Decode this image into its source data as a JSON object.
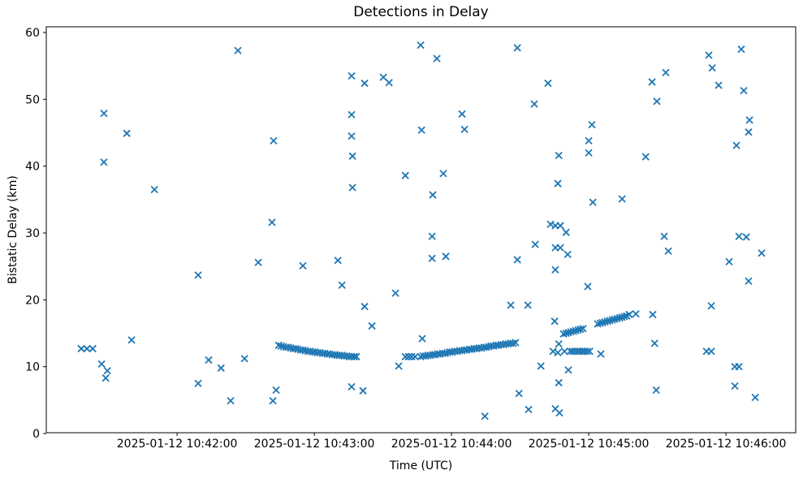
{
  "figure": {
    "title": "Detections in Delay",
    "xlabel": "Time (UTC)",
    "ylabel": "Bistatic Delay (km)"
  },
  "chart_data": {
    "type": "scatter",
    "title": "Detections in Delay",
    "xlabel": "Time (UTC)",
    "ylabel": "Bistatic Delay (km)",
    "marker": "x",
    "marker_color": "#1f77b4",
    "grid": false,
    "legend": null,
    "x_axis": {
      "date": "2025-01-12",
      "range": [
        "10:41:02.8",
        "10:46:30.5"
      ],
      "tick_times": [
        "10:42:00",
        "10:43:00",
        "10:44:00",
        "10:45:00",
        "10:46:00"
      ],
      "tick_labels": [
        "2025-01-12 10:42:00",
        "2025-01-12 10:43:00",
        "2025-01-12 10:44:00",
        "2025-01-12 10:45:00",
        "2025-01-12 10:46:00"
      ]
    },
    "y_axis": {
      "range": [
        0,
        60
      ],
      "ticks": [
        0,
        10,
        20,
        30,
        40,
        50,
        60
      ]
    },
    "points": [
      [
        "10:41:18.1",
        12.7
      ],
      [
        "10:41:20.6",
        12.7
      ],
      [
        "10:41:23.1",
        12.7
      ],
      [
        "10:41:27.0",
        10.4
      ],
      [
        "10:41:28.0",
        47.9
      ],
      [
        "10:41:28.0",
        40.6
      ],
      [
        "10:41:29.5",
        9.4
      ],
      [
        "10:41:28.8",
        8.3
      ],
      [
        "10:41:38.0",
        44.9
      ],
      [
        "10:41:40.1",
        14.0
      ],
      [
        "10:41:50.1",
        36.5
      ],
      [
        "10:42:09.2",
        23.7
      ],
      [
        "10:42:09.2",
        7.5
      ],
      [
        "10:42:13.8",
        11.0
      ],
      [
        "10:42:19.2",
        9.8
      ],
      [
        "10:42:23.4",
        4.9
      ],
      [
        "10:42:26.6",
        57.3
      ],
      [
        "10:42:29.5",
        11.2
      ],
      [
        "10:42:35.5",
        25.6
      ],
      [
        "10:42:41.5",
        31.6
      ],
      [
        "10:42:42.2",
        43.8
      ],
      [
        "10:42:41.9",
        4.9
      ],
      [
        "10:42:43.3",
        6.5
      ],
      [
        "10:42:55.0",
        25.1
      ],
      [
        "10:43:10.3",
        25.9
      ],
      [
        "10:43:12.1",
        22.2
      ],
      [
        "10:43:16.3",
        53.5
      ],
      [
        "10:43:16.3",
        47.7
      ],
      [
        "10:43:16.3",
        44.5
      ],
      [
        "10:43:16.7",
        41.5
      ],
      [
        "10:43:16.7",
        36.8
      ],
      [
        "10:43:16.3",
        7.0
      ],
      [
        "10:43:21.3",
        6.4
      ],
      [
        "10:43:22.0",
        52.4
      ],
      [
        "10:43:22.0",
        19.0
      ],
      [
        "10:43:25.2",
        16.1
      ],
      [
        "10:43:30.2",
        53.3
      ],
      [
        "10:43:32.7",
        52.5
      ],
      [
        "10:43:35.5",
        21.0
      ],
      [
        "10:43:36.9",
        10.1
      ],
      [
        "10:43:39.8",
        38.6
      ],
      [
        "10:43:46.5",
        58.1
      ],
      [
        "10:43:46.9",
        45.4
      ],
      [
        "10:43:47.2",
        14.2
      ],
      [
        "10:43:51.5",
        29.5
      ],
      [
        "10:43:51.5",
        26.2
      ],
      [
        "10:43:51.8",
        35.7
      ],
      [
        "10:43:53.6",
        56.1
      ],
      [
        "10:43:56.4",
        38.9
      ],
      [
        "10:43:57.5",
        26.5
      ],
      [
        "10:44:04.6",
        47.8
      ],
      [
        "10:44:05.7",
        45.5
      ],
      [
        "10:44:14.6",
        2.6
      ],
      [
        "10:44:25.9",
        19.2
      ],
      [
        "10:44:28.8",
        57.7
      ],
      [
        "10:44:28.8",
        26.0
      ],
      [
        "10:44:29.5",
        6.0
      ],
      [
        "10:44:33.4",
        19.2
      ],
      [
        "10:44:33.7",
        3.6
      ],
      [
        "10:44:36.2",
        49.3
      ],
      [
        "10:44:36.6",
        28.3
      ],
      [
        "10:44:39.1",
        10.1
      ],
      [
        "10:44:42.2",
        52.4
      ],
      [
        "10:44:43.3",
        31.3
      ],
      [
        "10:44:45.4",
        31.1
      ],
      [
        "10:44:47.6",
        31.1
      ],
      [
        "10:44:50.1",
        30.1
      ],
      [
        "10:44:45.4",
        27.8
      ],
      [
        "10:44:47.6",
        27.8
      ],
      [
        "10:44:50.8",
        26.8
      ],
      [
        "10:44:45.4",
        24.5
      ],
      [
        "10:44:45.1",
        16.8
      ],
      [
        "10:44:46.9",
        41.6
      ],
      [
        "10:44:46.5",
        37.4
      ],
      [
        "10:44:46.9",
        13.4
      ],
      [
        "10:44:44.4",
        12.3
      ],
      [
        "10:44:46.5",
        12.1
      ],
      [
        "10:44:49.4",
        12.3
      ],
      [
        "10:44:46.9",
        7.6
      ],
      [
        "10:44:45.4",
        3.7
      ],
      [
        "10:44:47.2",
        3.1
      ],
      [
        "10:44:51.1",
        9.5
      ],
      [
        "10:44:59.6",
        22.0
      ],
      [
        "10:45:00.0",
        43.8
      ],
      [
        "10:45:01.4",
        46.2
      ],
      [
        "10:45:00.0",
        42.0
      ],
      [
        "10:45:01.8",
        34.6
      ],
      [
        "10:45:05.3",
        11.9
      ],
      [
        "10:45:14.6",
        35.1
      ],
      [
        "10:45:20.6",
        17.9
      ],
      [
        "10:45:24.9",
        41.4
      ],
      [
        "10:45:27.7",
        52.6
      ],
      [
        "10:45:28.0",
        17.8
      ],
      [
        "10:45:28.8",
        13.5
      ],
      [
        "10:45:29.5",
        6.5
      ],
      [
        "10:45:29.8",
        49.7
      ],
      [
        "10:45:33.0",
        29.5
      ],
      [
        "10:45:33.7",
        54.0
      ],
      [
        "10:45:34.8",
        27.3
      ],
      [
        "10:45:51.5",
        12.3
      ],
      [
        "10:45:52.5",
        56.6
      ],
      [
        "10:45:53.6",
        12.3
      ],
      [
        "10:45:53.6",
        19.1
      ],
      [
        "10:45:54.0",
        54.7
      ],
      [
        "10:45:56.8",
        52.1
      ],
      [
        "10:46:01.4",
        25.7
      ],
      [
        "10:46:03.9",
        10.0
      ],
      [
        "10:46:05.7",
        10.0
      ],
      [
        "10:46:03.9",
        7.1
      ],
      [
        "10:46:04.6",
        43.1
      ],
      [
        "10:46:05.7",
        29.5
      ],
      [
        "10:46:06.7",
        57.5
      ],
      [
        "10:46:07.8",
        51.3
      ],
      [
        "10:46:08.9",
        29.4
      ],
      [
        "10:46:09.9",
        45.1
      ],
      [
        "10:46:09.9",
        22.8
      ],
      [
        "10:46:10.3",
        46.9
      ],
      [
        "10:46:12.8",
        5.4
      ],
      [
        "10:46:15.6",
        27.0
      ],
      [
        "10:42:44.4",
        13.2
      ],
      [
        "10:42:45.5",
        13.1
      ],
      [
        "10:42:46.5",
        13.0
      ],
      [
        "10:42:47.6",
        12.9
      ],
      [
        "10:42:48.7",
        12.9
      ],
      [
        "10:42:49.7",
        12.8
      ],
      [
        "10:42:50.8",
        12.7
      ],
      [
        "10:42:51.9",
        12.7
      ],
      [
        "10:42:52.9",
        12.6
      ],
      [
        "10:42:54.0",
        12.5
      ],
      [
        "10:42:55.1",
        12.5
      ],
      [
        "10:42:56.1",
        12.4
      ],
      [
        "10:42:57.2",
        12.3
      ],
      [
        "10:42:58.2",
        12.3
      ],
      [
        "10:42:59.3",
        12.2
      ],
      [
        "10:43:00.4",
        12.2
      ],
      [
        "10:43:01.4",
        12.1
      ],
      [
        "10:43:02.5",
        12.1
      ],
      [
        "10:43:03.6",
        12.0
      ],
      [
        "10:43:04.6",
        12.0
      ],
      [
        "10:43:05.7",
        11.9
      ],
      [
        "10:43:06.7",
        11.9
      ],
      [
        "10:43:07.8",
        11.8
      ],
      [
        "10:43:08.9",
        11.8
      ],
      [
        "10:43:09.9",
        11.7
      ],
      [
        "10:43:11.0",
        11.7
      ],
      [
        "10:43:12.1",
        11.7
      ],
      [
        "10:43:13.1",
        11.6
      ],
      [
        "10:43:14.2",
        11.6
      ],
      [
        "10:43:15.2",
        11.5
      ],
      [
        "10:43:16.3",
        11.5
      ],
      [
        "10:43:17.4",
        11.5
      ],
      [
        "10:43:18.4",
        11.5
      ],
      [
        "10:43:39.8",
        11.5
      ],
      [
        "10:43:41.2",
        11.5
      ],
      [
        "10:43:42.6",
        11.5
      ],
      [
        "10:43:44.1",
        11.5
      ],
      [
        "10:43:46.5",
        11.5
      ],
      [
        "10:43:47.6",
        11.6
      ],
      [
        "10:43:48.7",
        11.6
      ],
      [
        "10:43:49.7",
        11.7
      ],
      [
        "10:43:50.8",
        11.7
      ],
      [
        "10:43:51.9",
        11.8
      ],
      [
        "10:43:52.9",
        11.8
      ],
      [
        "10:43:54.0",
        11.9
      ],
      [
        "10:43:55.0",
        11.9
      ],
      [
        "10:43:56.1",
        12.0
      ],
      [
        "10:43:57.2",
        12.0
      ],
      [
        "10:43:58.2",
        12.1
      ],
      [
        "10:43:59.3",
        12.2
      ],
      [
        "10:44:00.3",
        12.2
      ],
      [
        "10:44:01.4",
        12.3
      ],
      [
        "10:44:02.5",
        12.3
      ],
      [
        "10:44:03.5",
        12.4
      ],
      [
        "10:44:04.6",
        12.4
      ],
      [
        "10:44:05.7",
        12.5
      ],
      [
        "10:44:06.7",
        12.5
      ],
      [
        "10:44:07.8",
        12.6
      ],
      [
        "10:44:08.8",
        12.6
      ],
      [
        "10:44:09.9",
        12.7
      ],
      [
        "10:44:11.0",
        12.7
      ],
      [
        "10:44:12.0",
        12.8
      ],
      [
        "10:44:13.1",
        12.8
      ],
      [
        "10:44:14.2",
        12.9
      ],
      [
        "10:44:15.2",
        12.9
      ],
      [
        "10:44:16.3",
        13.0
      ],
      [
        "10:44:17.3",
        13.1
      ],
      [
        "10:44:18.4",
        13.1
      ],
      [
        "10:44:19.5",
        13.2
      ],
      [
        "10:44:20.5",
        13.2
      ],
      [
        "10:44:21.6",
        13.3
      ],
      [
        "10:44:22.7",
        13.3
      ],
      [
        "10:44:23.7",
        13.4
      ],
      [
        "10:44:24.8",
        13.4
      ],
      [
        "10:44:25.8",
        13.5
      ],
      [
        "10:44:26.9",
        13.5
      ],
      [
        "10:44:28.0",
        13.6
      ],
      [
        "10:44:49.0",
        14.9
      ],
      [
        "10:44:50.1",
        15.0
      ],
      [
        "10:44:51.1",
        15.1
      ],
      [
        "10:44:52.2",
        15.2
      ],
      [
        "10:44:53.3",
        15.3
      ],
      [
        "10:44:54.3",
        15.4
      ],
      [
        "10:44:55.4",
        15.5
      ],
      [
        "10:44:56.4",
        15.6
      ],
      [
        "10:44:57.5",
        15.7
      ],
      [
        "10:45:03.9",
        16.4
      ],
      [
        "10:45:05.0",
        16.5
      ],
      [
        "10:45:06.0",
        16.6
      ],
      [
        "10:45:07.1",
        16.7
      ],
      [
        "10:45:08.2",
        16.8
      ],
      [
        "10:45:09.2",
        16.9
      ],
      [
        "10:45:10.3",
        17.0
      ],
      [
        "10:45:11.3",
        17.1
      ],
      [
        "10:45:12.4",
        17.2
      ],
      [
        "10:45:13.5",
        17.3
      ],
      [
        "10:45:14.5",
        17.4
      ],
      [
        "10:45:15.6",
        17.5
      ],
      [
        "10:45:16.6",
        17.6
      ],
      [
        "10:45:17.7",
        17.8
      ],
      [
        "10:44:51.9",
        12.3
      ],
      [
        "10:44:52.9",
        12.3
      ],
      [
        "10:44:54.0",
        12.3
      ],
      [
        "10:44:55.1",
        12.3
      ],
      [
        "10:44:56.1",
        12.3
      ],
      [
        "10:44:57.2",
        12.3
      ],
      [
        "10:44:58.2",
        12.3
      ],
      [
        "10:44:59.3",
        12.3
      ],
      [
        "10:45:00.4",
        12.3
      ]
    ]
  }
}
